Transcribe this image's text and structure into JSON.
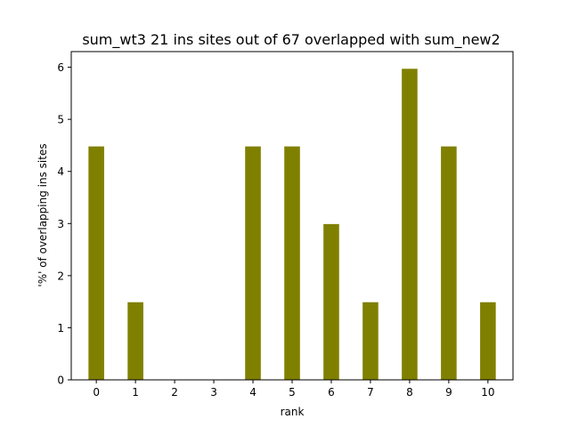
{
  "chart_data": {
    "type": "bar",
    "title": "sum_wt3 21 ins sites out of 67 overlapped with sum_new2",
    "xlabel": "rank",
    "ylabel": "'%' of overlapping ins sites",
    "categories": [
      "0",
      "1",
      "2",
      "3",
      "4",
      "5",
      "6",
      "7",
      "8",
      "9",
      "10"
    ],
    "values": [
      4.48,
      1.49,
      0,
      0,
      4.48,
      4.48,
      2.99,
      1.49,
      5.97,
      4.48,
      1.49
    ],
    "ylim": [
      0,
      6.3
    ],
    "yticks": [
      "0",
      "1",
      "2",
      "3",
      "4",
      "5",
      "6"
    ],
    "bar_color": "#808000",
    "grid": false,
    "legend": "none"
  }
}
